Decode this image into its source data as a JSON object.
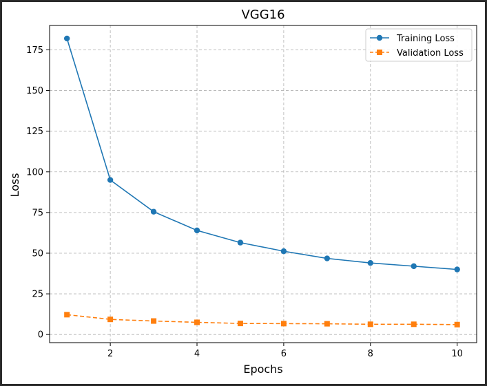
{
  "chart_data": {
    "type": "line",
    "title": "VGG16",
    "xlabel": "Epochs",
    "ylabel": "Loss",
    "xlim": [
      0.6,
      10.45
    ],
    "ylim": [
      -5,
      190
    ],
    "x": [
      1,
      2,
      3,
      4,
      5,
      6,
      7,
      8,
      9,
      10
    ],
    "xticks": [
      2,
      4,
      6,
      8,
      10
    ],
    "yticks": [
      0,
      25,
      50,
      75,
      100,
      125,
      150,
      175
    ],
    "grid": true,
    "legend_position": "top-right",
    "series": [
      {
        "name": "Training Loss",
        "color": "#1f77b4",
        "line_style": "solid",
        "marker": "circle",
        "values": [
          182,
          95,
          75.5,
          64,
          56.5,
          51.2,
          46.8,
          44,
          42,
          40
        ]
      },
      {
        "name": "Validation Loss",
        "color": "#ff7f0e",
        "line_style": "dashed",
        "marker": "square",
        "values": [
          12.2,
          9.3,
          8.3,
          7.5,
          6.8,
          6.7,
          6.6,
          6.3,
          6.3,
          6.1
        ]
      }
    ]
  }
}
